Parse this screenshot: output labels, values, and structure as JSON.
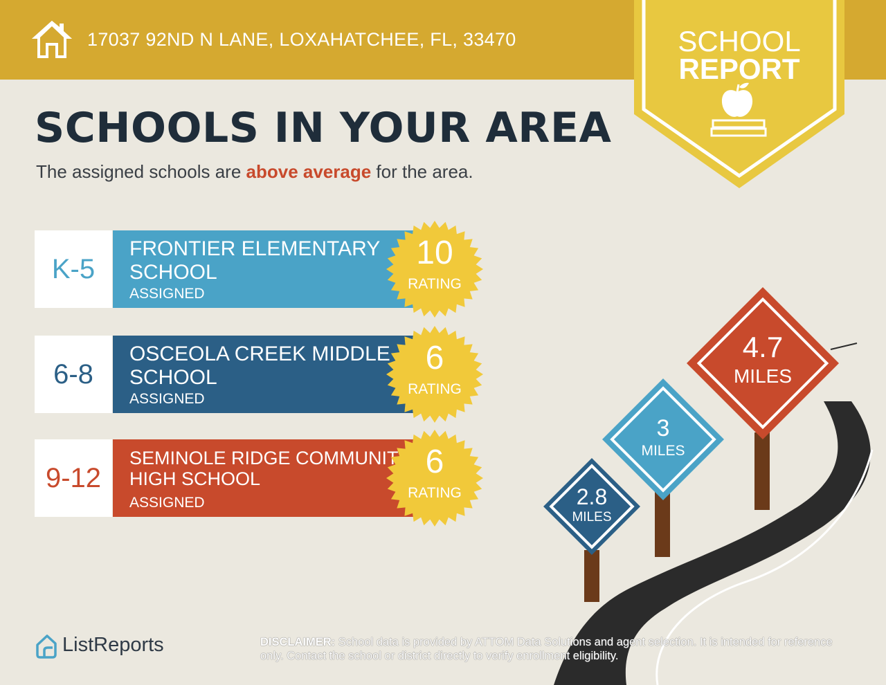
{
  "header": {
    "address": "17037 92ND N LANE, LOXAHATCHEE, FL, 33470",
    "badge_line1": "SCHOOL",
    "badge_line2": "REPORT"
  },
  "headline": "SCHOOLS IN YOUR AREA",
  "subline": {
    "before": "The assigned schools are ",
    "highlight": "above average",
    "after": " for the area."
  },
  "schools": [
    {
      "grades": "K-5",
      "name": "FRONTIER ELEMENTARY SCHOOL",
      "status": "ASSIGNED",
      "rating": "10",
      "rating_label": "RATING",
      "color": "#4aa3c7"
    },
    {
      "grades": "6-8",
      "name": "OSCEOLA CREEK MIDDLE SCHOOL",
      "status": "ASSIGNED",
      "rating": "6",
      "rating_label": "RATING",
      "color": "#2b5f86"
    },
    {
      "grades": "9-12",
      "name": "SEMINOLE RIDGE COMMUNITY HIGH SCHOOL",
      "status": "ASSIGNED",
      "rating": "6",
      "rating_label": "RATING",
      "color": "#c84a2c"
    }
  ],
  "distances": [
    {
      "value": "2.8",
      "unit": "MILES",
      "color": "#2b5f86"
    },
    {
      "value": "3",
      "unit": "MILES",
      "color": "#4aa3c7"
    },
    {
      "value": "4.7",
      "unit": "MILES",
      "color": "#c84a2c"
    }
  ],
  "footer": {
    "brand": "ListReports",
    "disclaimer_label": "DISCLAIMER:",
    "disclaimer_text": " School data is provided by ATTOM Data Solutions and agent selection. It is intended for reference only. Contact the school or district directly to verify enrollment eligibility."
  },
  "colors": {
    "gold": "#d5a930",
    "badge_yellow": "#e8c840",
    "seal_yellow": "#f1c93a",
    "headline": "#1f2d3a",
    "highlight": "#c84a2c"
  }
}
